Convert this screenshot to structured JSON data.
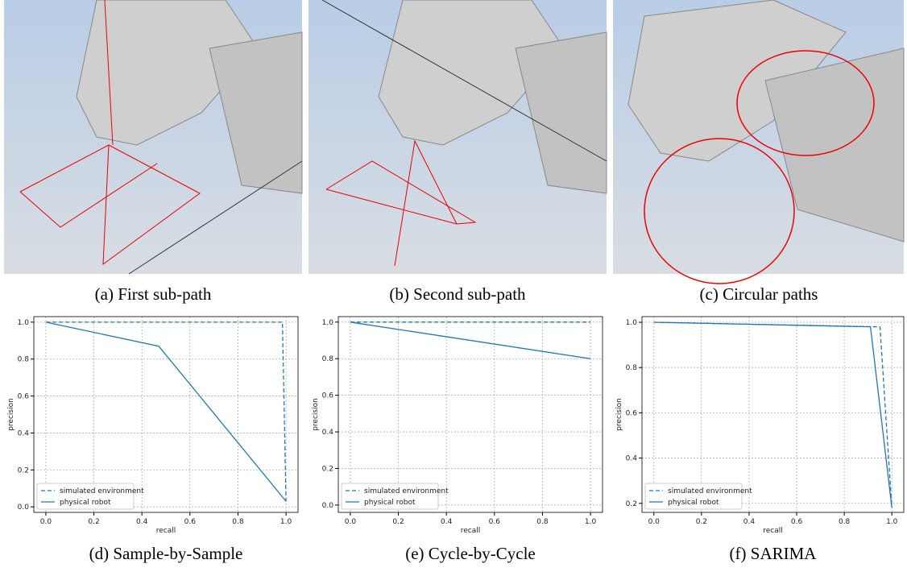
{
  "figures": [
    {
      "caption": "(a) First sub-path"
    },
    {
      "caption": "(b) Second sub-path"
    },
    {
      "caption": "(c) Circular paths"
    }
  ],
  "chart_data": [
    {
      "type": "line",
      "caption": "(d) Sample-by-Sample",
      "xlabel": "recall",
      "ylabel": "precision",
      "xlim": [
        -0.05,
        1.05
      ],
      "ylim": [
        -0.03,
        1.03
      ],
      "xticks": [
        {
          "value": 0,
          "label": "0.0"
        },
        0.2,
        0.4,
        0.6,
        0.8,
        {
          "value": 1,
          "label": "1.0"
        }
      ],
      "yticks": [
        {
          "value": 0,
          "label": "0.0"
        },
        0.2,
        0.4,
        0.6,
        0.8,
        {
          "value": 1,
          "label": "1.0"
        }
      ],
      "grid": true,
      "legend": "lower left",
      "series": [
        {
          "name": "simulated environment",
          "color": "#1f77b4",
          "linestyle": "dashed",
          "x": [
            0,
            0.985,
            1.0
          ],
          "values": [
            1.0,
            1.0,
            0.03
          ]
        },
        {
          "name": "physical robot",
          "color": "#1f77b4",
          "linestyle": "solid",
          "x": [
            0,
            0.47,
            1.0
          ],
          "values": [
            1.0,
            0.87,
            0.03
          ]
        }
      ]
    },
    {
      "type": "line",
      "caption": "(e) Cycle-by-Cycle",
      "xlabel": "recall",
      "ylabel": "precision",
      "xlim": [
        -0.05,
        1.05
      ],
      "ylim": [
        -0.04,
        1.03
      ],
      "xticks": [
        {
          "value": 0,
          "label": "0.0"
        },
        0.2,
        0.4,
        0.6,
        0.8,
        {
          "value": 1,
          "label": "1.0"
        }
      ],
      "yticks": [
        {
          "value": 0,
          "label": "0.0"
        },
        0.2,
        0.4,
        0.6,
        0.8,
        {
          "value": 1,
          "label": "1.0"
        }
      ],
      "grid": true,
      "legend": "lower left",
      "series": [
        {
          "name": "simulated environment",
          "color": "#1f77b4",
          "linestyle": "dashed",
          "x": [
            0,
            1.0
          ],
          "values": [
            1.0,
            1.0
          ]
        },
        {
          "name": "physical robot",
          "color": "#1f77b4",
          "linestyle": "solid",
          "x": [
            0,
            1.0
          ],
          "values": [
            1.0,
            0.8
          ]
        }
      ]
    },
    {
      "type": "line",
      "caption": "(f) SARIMA",
      "xlabel": "recall",
      "ylabel": "precision",
      "xlim": [
        -0.05,
        1.05
      ],
      "ylim": [
        0.16,
        1.025
      ],
      "xticks": [
        {
          "value": 0,
          "label": "0.0"
        },
        0.2,
        0.4,
        0.6,
        0.8,
        {
          "value": 1,
          "label": "1.0"
        }
      ],
      "yticks": [
        0.2,
        0.4,
        0.6,
        0.8,
        {
          "value": 1,
          "label": "1.0"
        }
      ],
      "grid": true,
      "legend": "lower left",
      "series": [
        {
          "name": "simulated environment",
          "color": "#1f77b4",
          "linestyle": "dashed",
          "x": [
            0,
            0.93,
            0.95,
            1.0
          ],
          "values": [
            1.0,
            0.98,
            0.98,
            0.18
          ]
        },
        {
          "name": "physical robot",
          "color": "#1f77b4",
          "linestyle": "solid",
          "x": [
            0,
            0.91,
            1.0
          ],
          "values": [
            1.0,
            0.98,
            0.18
          ]
        }
      ]
    }
  ]
}
